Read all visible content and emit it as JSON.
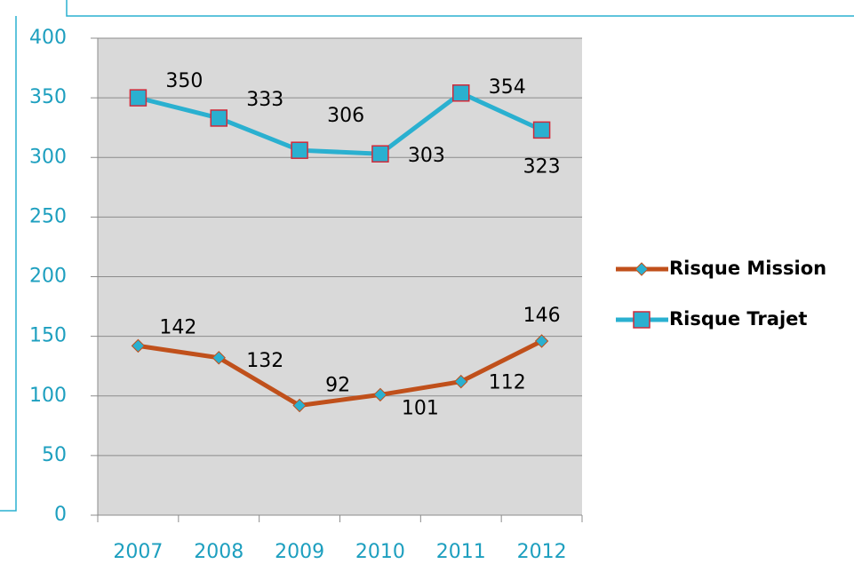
{
  "chart_data": {
    "type": "line",
    "categories": [
      "2007",
      "2008",
      "2009",
      "2010",
      "2011",
      "2012"
    ],
    "series": [
      {
        "name": "Risque Mission",
        "color": "#c0501b",
        "marker": "diamond",
        "marker_color": "#2ab0d0",
        "values": [
          142,
          132,
          92,
          101,
          112,
          146
        ]
      },
      {
        "name": "Risque Trajet",
        "color": "#2ab0d0",
        "marker": "square",
        "marker_color": "#2ab0d0",
        "values": [
          350,
          333,
          306,
          303,
          354,
          323
        ]
      }
    ],
    "ylim": [
      0,
      400
    ],
    "yticks": [
      0,
      50,
      100,
      150,
      200,
      250,
      300,
      350,
      400
    ],
    "grid": true,
    "legend": "right"
  }
}
